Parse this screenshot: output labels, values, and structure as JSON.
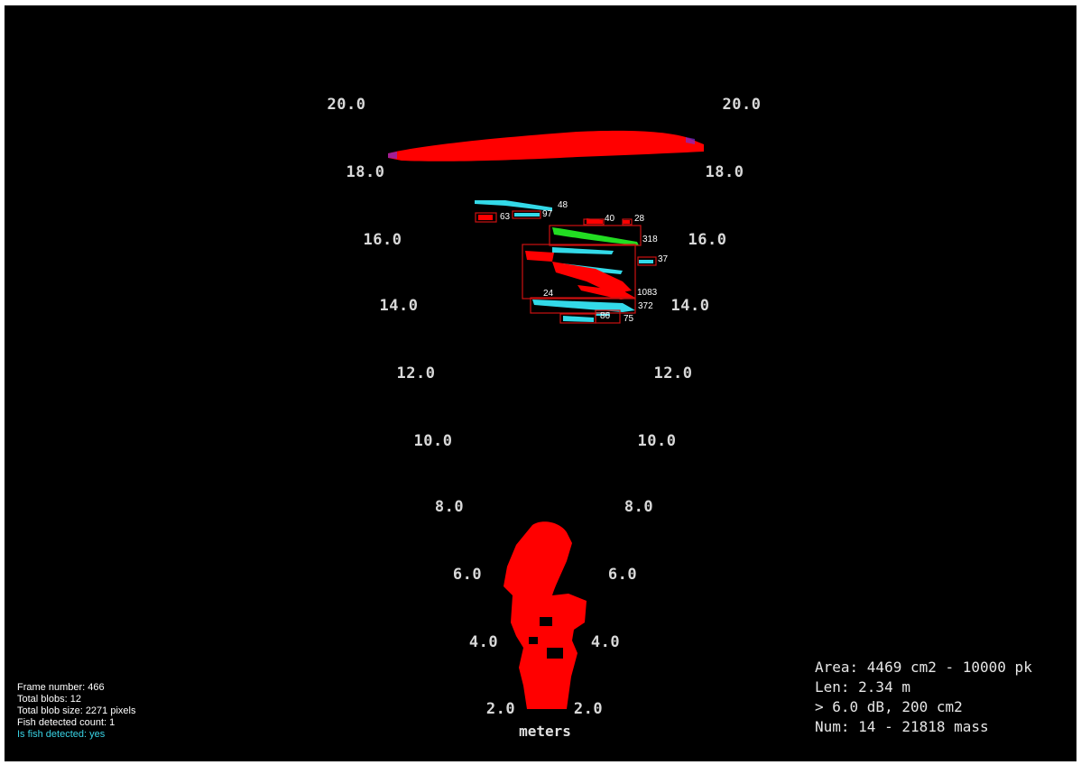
{
  "range_labels": [
    "20.0",
    "18.0",
    "16.0",
    "14.0",
    "12.0",
    "10.0",
    "8.0",
    "6.0",
    "4.0",
    "2.0"
  ],
  "units_label": "meters",
  "blob_labels": [
    "48",
    "63",
    "97",
    "40",
    "28",
    "318",
    "37",
    "1083",
    "24",
    "372",
    "86",
    "75"
  ],
  "colors": {
    "background": "#000000",
    "blob": "#ff0000",
    "fish": "#22dd22",
    "echo": "#33d9e8",
    "box": "#cc1111",
    "info_detected": "#39d4e6"
  },
  "info": {
    "frame_number": "Frame number: 466",
    "total_blobs": "Total blobs: 12",
    "total_blob_size": "Total blob size: 2271 pixels",
    "fish_detected_count": "Fish detected count: 1",
    "is_fish_detected": "Is fish detected: yes"
  },
  "stats": {
    "area": "Area: 4469 cm2 - 10000 pk",
    "length": "Len: 2.34 m",
    "threshold": "> 6.0 dB, 200 cm2",
    "num": "Num: 14 - 21818 mass"
  }
}
